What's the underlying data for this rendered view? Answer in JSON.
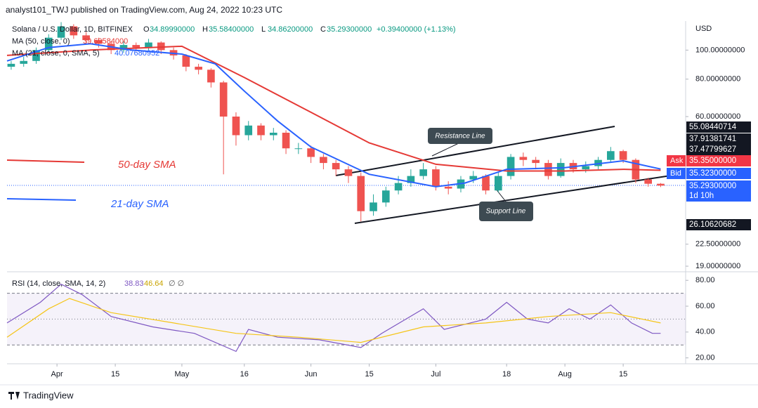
{
  "header": {
    "publisher": "analyst101_TWJ published on TradingView.com, Aug 24, 2022 10:23 UTC",
    "brand": "TradingView"
  },
  "legend": {
    "symbol": "Solana / U.S. Dollar, 1D, BITFINEX",
    "ohlc": [
      {
        "key": "O",
        "value": "34.89990000"
      },
      {
        "key": "H",
        "value": "35.58400000"
      },
      {
        "key": "L",
        "value": "34.86200000"
      },
      {
        "key": "C",
        "value": "35.29300000"
      }
    ],
    "change": "+0.39400000 (+1.13%)",
    "ma50": {
      "name": "MA (50, close, 0)",
      "value": "39.69584000"
    },
    "ma21": {
      "name": "MA (21, close, 0, SMA, 5)",
      "value": "40.07680952"
    }
  },
  "chart_data": [
    {
      "type": "candlestick",
      "currency": "USD",
      "colors": {
        "up": "#26a69a",
        "down": "#ef5350"
      },
      "x": [
        1,
        4,
        7,
        10,
        13,
        16,
        19,
        22,
        25,
        28,
        31,
        34,
        37,
        40,
        43,
        46,
        49,
        52,
        55,
        58,
        61,
        64,
        67,
        70,
        73,
        76,
        79,
        82,
        85,
        88,
        91,
        94,
        97,
        100,
        103,
        106,
        109,
        112,
        115,
        118,
        121,
        124,
        127,
        130,
        133,
        136,
        139,
        142,
        145,
        148,
        151,
        154,
        157
      ],
      "open": [
        88,
        90,
        92,
        100,
        110,
        120,
        112,
        108,
        105,
        100,
        104,
        102,
        106,
        100,
        96,
        88,
        86,
        78,
        60,
        52,
        56,
        52,
        53,
        47,
        47,
        44,
        42,
        40,
        38,
        29,
        31,
        34,
        36,
        38,
        40,
        35,
        34.5,
        37,
        38,
        34,
        38,
        44,
        43,
        42,
        38,
        42,
        40,
        41,
        43,
        46,
        43,
        37,
        35.8
      ],
      "high": [
        92,
        95,
        102,
        113,
        124,
        122,
        115,
        110,
        107,
        107,
        106,
        109,
        107,
        102,
        97,
        90,
        87,
        79,
        62,
        58,
        57,
        55,
        54,
        49,
        48,
        45,
        43,
        41,
        39,
        33,
        35,
        38,
        40,
        42,
        41,
        36.5,
        38,
        39.5,
        38.5,
        39,
        45,
        45.5,
        44,
        43,
        43.5,
        43,
        42.5,
        44,
        47.5,
        46.5,
        43.5,
        37.5,
        36
      ],
      "low": [
        86,
        88,
        90,
        98,
        108,
        109,
        105,
        102,
        97,
        98,
        99,
        100,
        97,
        93,
        85,
        83,
        75,
        38.5,
        48,
        50,
        50,
        50,
        45,
        45,
        42,
        40,
        38,
        36,
        26.8,
        28,
        30,
        33,
        35,
        37,
        34,
        33,
        33.5,
        36,
        33,
        33.5,
        37,
        41,
        40,
        37,
        37.5,
        39,
        39,
        40,
        42,
        42,
        36,
        35,
        34.9
      ],
      "close": [
        90,
        92,
        100,
        110,
        120,
        112,
        108,
        105,
        100,
        104,
        102,
        106,
        100,
        96,
        88,
        86,
        78,
        60,
        52,
        56,
        52,
        53,
        47,
        47,
        44,
        42,
        40,
        38,
        29,
        31,
        34,
        36,
        38,
        40,
        35,
        34.5,
        37,
        38,
        34,
        38,
        44,
        43,
        42,
        38,
        42,
        40,
        41,
        43,
        46,
        43,
        37,
        35.8,
        35.3
      ],
      "xlim": [
        0,
        163
      ],
      "xticks": [
        {
          "value": 12,
          "label": "Apr"
        },
        {
          "value": 26,
          "label": "15"
        },
        {
          "value": 42,
          "label": "May"
        },
        {
          "value": 57,
          "label": "16"
        },
        {
          "value": 73,
          "label": "Jun"
        },
        {
          "value": 87,
          "label": "15"
        },
        {
          "value": 103,
          "label": "Jul"
        },
        {
          "value": 120,
          "label": "18"
        },
        {
          "value": 134,
          "label": "Aug"
        },
        {
          "value": 148,
          "label": "15"
        }
      ],
      "ylim": [
        18.4,
        125
      ],
      "log_scale": true,
      "yticks": [
        {
          "value": 100,
          "label": "100.00000000"
        },
        {
          "value": 80,
          "label": "80.00000000"
        },
        {
          "value": 60,
          "label": "60.00000000"
        },
        {
          "value": 22.5,
          "label": "22.50000000"
        },
        {
          "value": 19,
          "label": "19.00000000"
        }
      ],
      "lines": [
        {
          "name": "50-day SMA",
          "color": "#e53935",
          "x": [
            0,
            20,
            42,
            57,
            73,
            87,
            103,
            120,
            134,
            148,
            157
          ],
          "values": [
            96,
            100,
            103,
            81,
            62,
            49,
            41.6,
            39.5,
            39.5,
            40,
            39.7
          ]
        },
        {
          "name": "21-day SMA",
          "color": "#2962ff",
          "x": [
            0,
            10,
            20,
            30,
            42,
            50,
            57,
            65,
            73,
            87,
            103,
            110,
            120,
            134,
            148,
            157
          ],
          "values": [
            92,
            102,
            105,
            100,
            97,
            90,
            73,
            58,
            47.5,
            38.5,
            35,
            36,
            40,
            40.5,
            42.7,
            40.1
          ]
        }
      ],
      "annotations": [
        "Resistance Line",
        "Support Line"
      ],
      "price_badges": [
        {
          "value": 55.08440714,
          "label": "55.08440714",
          "color": "#131722"
        },
        {
          "value": 37.91381741,
          "label": "37.91381741",
          "color": "#131722"
        },
        {
          "value": 37.47799627,
          "label": "37.47799627",
          "color": "#131722"
        },
        {
          "tag": "Ask",
          "value": 35.35,
          "label": "35.35000000",
          "color": "#f23645"
        },
        {
          "tag": "Bid",
          "value": 35.323,
          "label": "35.32300000",
          "color": "#2962ff"
        },
        {
          "value": 35.293,
          "label": "35.29300000",
          "note": "1d 10h",
          "color": "#2962ff"
        },
        {
          "value": 26.10620682,
          "label": "26.10620682",
          "color": "#131722"
        }
      ]
    },
    {
      "type": "line",
      "title": "RSI (14, close, SMA, 14, 2)",
      "extra": "∅ ∅",
      "series": [
        {
          "color": "#7e57c2",
          "value_label": "38.83",
          "x": [
            0,
            8,
            13,
            18,
            25,
            35,
            45,
            55,
            58,
            65,
            75,
            85,
            90,
            100,
            105,
            115,
            120,
            125,
            130,
            135,
            140,
            145,
            150,
            155,
            157
          ],
          "values": [
            47,
            63,
            77,
            69,
            52,
            44,
            39,
            25,
            42,
            36,
            34,
            28,
            39,
            58,
            42,
            50,
            63,
            50,
            47,
            58,
            50,
            61,
            47,
            39,
            39
          ]
        },
        {
          "color": "#f5c518",
          "value_label": "46.64",
          "x": [
            0,
            10,
            15,
            25,
            40,
            55,
            70,
            85,
            100,
            115,
            130,
            145,
            157
          ],
          "values": [
            36,
            58,
            66,
            55,
            47,
            39,
            36,
            32,
            44,
            47,
            52,
            55,
            47
          ]
        }
      ],
      "ylim": [
        16,
        85
      ],
      "yticks": [
        {
          "value": 80,
          "label": "80.00"
        },
        {
          "value": 60,
          "label": "60.00"
        },
        {
          "value": 40,
          "label": "40.00"
        },
        {
          "value": 20,
          "label": "20.00"
        }
      ],
      "bands": [
        70,
        50,
        30
      ]
    }
  ]
}
